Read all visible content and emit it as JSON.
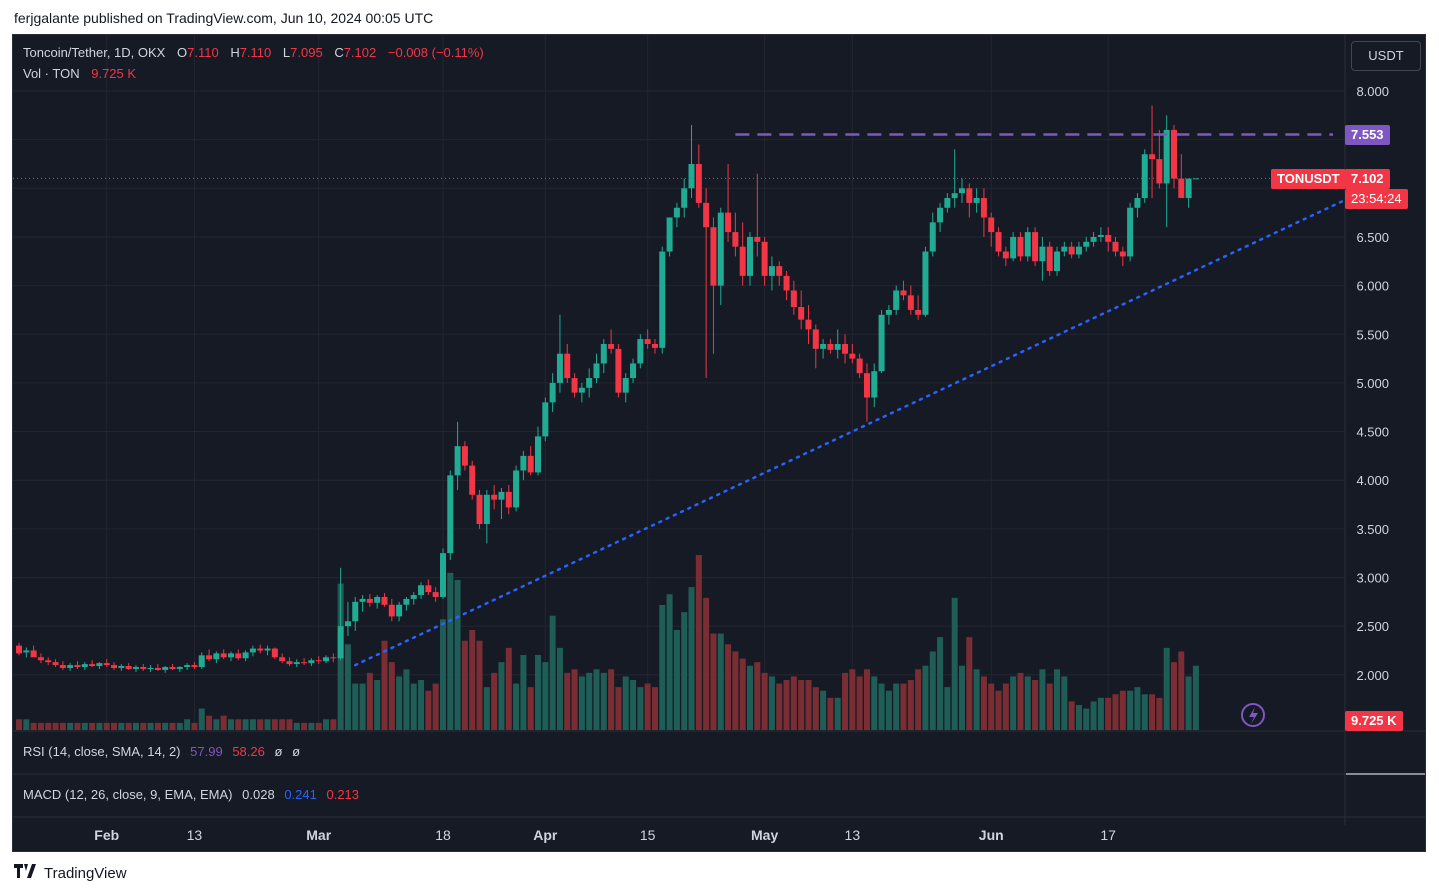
{
  "publisher_line": "ferjgalante published on TradingView.com, Jun 10, 2024 00:05 UTC",
  "legend": {
    "symbol": "Toncoin/Tether, 1D, OKX",
    "o_label": "O",
    "o": "7.110",
    "h_label": "H",
    "h": "7.110",
    "l_label": "L",
    "l": "7.095",
    "c_label": "C",
    "c": "7.102",
    "change": "−0.008 (−0.11%)",
    "vol_label": "Vol · TON",
    "vol": "9.725 K"
  },
  "currency_button": "USDT",
  "price_tags": {
    "resistance": "7.553",
    "symbol_label": "TONUSDT",
    "last_price": "7.102",
    "countdown": "23:54:24",
    "volume": "9.725 K"
  },
  "rsi": {
    "label": "RSI (14, close, SMA, 14, 2)",
    "v1": "57.99",
    "v2": "58.26",
    "v3": "ø",
    "v4": "ø"
  },
  "macd": {
    "label": "MACD (12, 26, close, 9, EMA, EMA)",
    "v1": "0.028",
    "v2": "0.241",
    "v3": "0.213"
  },
  "footer_brand": "TradingView",
  "colors": {
    "up": "#22ab94",
    "down": "#f23645",
    "background": "#161a25",
    "trendline": "#2962ff",
    "resistance": "#7e57c2"
  },
  "chart_data": {
    "type": "candlestick",
    "title": "Toncoin/Tether, 1D, OKX",
    "y_ticks": [
      "8.000",
      "7.500",
      "7.000",
      "6.500",
      "6.000",
      "5.500",
      "5.000",
      "4.500",
      "4.000",
      "3.500",
      "3.000",
      "2.500",
      "2.000"
    ],
    "ylim": [
      1.45,
      8.45
    ],
    "x_ticks": [
      "Feb",
      "13",
      "Mar",
      "18",
      "Apr",
      "15",
      "May",
      "13",
      "Jun",
      "17"
    ],
    "start_date": "2024-01-20",
    "end_date": "2024-06-10",
    "ohlc": [
      [
        2.3,
        2.33,
        2.2,
        2.22
      ],
      [
        2.23,
        2.28,
        2.18,
        2.25
      ],
      [
        2.25,
        2.3,
        2.2,
        2.18
      ],
      [
        2.18,
        2.22,
        2.12,
        2.15
      ],
      [
        2.15,
        2.18,
        2.1,
        2.13
      ],
      [
        2.13,
        2.16,
        2.08,
        2.1
      ],
      [
        2.1,
        2.14,
        2.05,
        2.07
      ],
      [
        2.07,
        2.12,
        2.04,
        2.1
      ],
      [
        2.1,
        2.14,
        2.06,
        2.08
      ],
      [
        2.08,
        2.13,
        2.05,
        2.11
      ],
      [
        2.11,
        2.15,
        2.08,
        2.09
      ],
      [
        2.09,
        2.13,
        2.06,
        2.12
      ],
      [
        2.12,
        2.16,
        2.08,
        2.1
      ],
      [
        2.1,
        2.13,
        2.05,
        2.07
      ],
      [
        2.07,
        2.11,
        2.04,
        2.09
      ],
      [
        2.09,
        2.12,
        2.05,
        2.06
      ],
      [
        2.06,
        2.1,
        2.03,
        2.08
      ],
      [
        2.08,
        2.11,
        2.04,
        2.06
      ],
      [
        2.06,
        2.1,
        2.03,
        2.07
      ],
      [
        2.07,
        2.11,
        2.04,
        2.05
      ],
      [
        2.05,
        2.09,
        2.02,
        2.08
      ],
      [
        2.08,
        2.11,
        2.05,
        2.06
      ],
      [
        2.06,
        2.09,
        2.03,
        2.08
      ],
      [
        2.08,
        2.12,
        2.05,
        2.1
      ],
      [
        2.1,
        2.13,
        2.06,
        2.08
      ],
      [
        2.08,
        2.23,
        2.06,
        2.2
      ],
      [
        2.2,
        2.26,
        2.14,
        2.16
      ],
      [
        2.16,
        2.24,
        2.12,
        2.22
      ],
      [
        2.22,
        2.26,
        2.16,
        2.18
      ],
      [
        2.18,
        2.24,
        2.14,
        2.22
      ],
      [
        2.22,
        2.26,
        2.15,
        2.17
      ],
      [
        2.17,
        2.25,
        2.14,
        2.23
      ],
      [
        2.23,
        2.3,
        2.19,
        2.27
      ],
      [
        2.27,
        2.31,
        2.22,
        2.25
      ],
      [
        2.25,
        2.3,
        2.2,
        2.27
      ],
      [
        2.27,
        2.28,
        2.16,
        2.18
      ],
      [
        2.18,
        2.22,
        2.12,
        2.14
      ],
      [
        2.14,
        2.18,
        2.09,
        2.11
      ],
      [
        2.11,
        2.16,
        2.08,
        2.13
      ],
      [
        2.13,
        2.17,
        2.1,
        2.12
      ],
      [
        2.12,
        2.17,
        2.09,
        2.15
      ],
      [
        2.15,
        2.19,
        2.11,
        2.14
      ],
      [
        2.14,
        2.2,
        2.12,
        2.18
      ],
      [
        2.18,
        2.22,
        2.13,
        2.17
      ],
      [
        2.17,
        3.1,
        2.15,
        2.5
      ],
      [
        2.5,
        2.75,
        2.4,
        2.55
      ],
      [
        2.55,
        2.8,
        2.45,
        2.75
      ],
      [
        2.75,
        2.82,
        2.65,
        2.78
      ],
      [
        2.78,
        2.83,
        2.7,
        2.74
      ],
      [
        2.74,
        2.82,
        2.68,
        2.8
      ],
      [
        2.8,
        2.84,
        2.7,
        2.72
      ],
      [
        2.72,
        2.78,
        2.55,
        2.6
      ],
      [
        2.6,
        2.75,
        2.55,
        2.72
      ],
      [
        2.72,
        2.8,
        2.66,
        2.78
      ],
      [
        2.78,
        2.85,
        2.72,
        2.82
      ],
      [
        2.82,
        2.95,
        2.78,
        2.92
      ],
      [
        2.92,
        2.98,
        2.82,
        2.85
      ],
      [
        2.85,
        2.9,
        2.75,
        2.8
      ],
      [
        2.8,
        3.3,
        2.78,
        3.25
      ],
      [
        3.25,
        4.1,
        3.18,
        4.05
      ],
      [
        4.05,
        4.6,
        3.9,
        4.35
      ],
      [
        4.35,
        4.4,
        4.1,
        4.15
      ],
      [
        4.15,
        4.2,
        3.8,
        3.85
      ],
      [
        3.85,
        3.9,
        3.5,
        3.55
      ],
      [
        3.55,
        3.9,
        3.35,
        3.85
      ],
      [
        3.85,
        3.95,
        3.7,
        3.8
      ],
      [
        3.8,
        3.92,
        3.6,
        3.88
      ],
      [
        3.88,
        3.95,
        3.65,
        3.72
      ],
      [
        3.72,
        4.15,
        3.68,
        4.1
      ],
      [
        4.1,
        4.3,
        4.0,
        4.25
      ],
      [
        4.25,
        4.35,
        4.05,
        4.08
      ],
      [
        4.08,
        4.55,
        4.05,
        4.45
      ],
      [
        4.45,
        4.85,
        4.4,
        4.8
      ],
      [
        4.8,
        5.1,
        4.7,
        5.0
      ],
      [
        5.0,
        5.7,
        4.9,
        5.3
      ],
      [
        5.3,
        5.4,
        5.0,
        5.05
      ],
      [
        5.05,
        5.1,
        4.85,
        4.9
      ],
      [
        4.9,
        5.0,
        4.8,
        4.95
      ],
      [
        4.95,
        5.15,
        4.85,
        5.05
      ],
      [
        5.05,
        5.3,
        5.0,
        5.2
      ],
      [
        5.2,
        5.45,
        5.1,
        5.4
      ],
      [
        5.4,
        5.55,
        5.3,
        5.35
      ],
      [
        5.35,
        5.4,
        4.85,
        4.9
      ],
      [
        4.9,
        5.1,
        4.8,
        5.05
      ],
      [
        5.05,
        5.25,
        5.0,
        5.2
      ],
      [
        5.2,
        5.5,
        5.15,
        5.45
      ],
      [
        5.45,
        5.55,
        5.35,
        5.4
      ],
      [
        5.4,
        5.45,
        5.3,
        5.36
      ],
      [
        5.36,
        6.4,
        5.3,
        6.35
      ],
      [
        6.35,
        6.7,
        6.3,
        6.7
      ],
      [
        6.7,
        6.85,
        6.6,
        6.8
      ],
      [
        6.8,
        7.1,
        6.7,
        7.0
      ],
      [
        7.0,
        7.65,
        6.9,
        7.25
      ],
      [
        7.25,
        7.45,
        6.8,
        6.85
      ],
      [
        6.85,
        7.0,
        5.05,
        6.6
      ],
      [
        6.6,
        6.7,
        5.3,
        6.0
      ],
      [
        6.0,
        6.8,
        5.8,
        6.75
      ],
      [
        6.75,
        7.25,
        6.45,
        6.55
      ],
      [
        6.55,
        6.75,
        6.3,
        6.4
      ],
      [
        6.4,
        6.65,
        6.0,
        6.1
      ],
      [
        6.1,
        6.55,
        6.0,
        6.5
      ],
      [
        6.5,
        7.15,
        6.3,
        6.45
      ],
      [
        6.45,
        6.5,
        6.0,
        6.1
      ],
      [
        6.1,
        6.3,
        5.95,
        6.2
      ],
      [
        6.2,
        6.25,
        6.0,
        6.1
      ],
      [
        6.1,
        6.15,
        5.85,
        5.95
      ],
      [
        5.95,
        6.05,
        5.7,
        5.78
      ],
      [
        5.78,
        5.95,
        5.55,
        5.65
      ],
      [
        5.65,
        5.8,
        5.4,
        5.55
      ],
      [
        5.55,
        5.6,
        5.15,
        5.35
      ],
      [
        5.35,
        5.45,
        5.25,
        5.4
      ],
      [
        5.4,
        5.45,
        5.3,
        5.34
      ],
      [
        5.34,
        5.55,
        5.25,
        5.4
      ],
      [
        5.4,
        5.5,
        5.2,
        5.3
      ],
      [
        5.3,
        5.4,
        5.2,
        5.25
      ],
      [
        5.25,
        5.3,
        5.05,
        5.1
      ],
      [
        5.1,
        5.2,
        4.6,
        4.85
      ],
      [
        4.85,
        5.2,
        4.75,
        5.12
      ],
      [
        5.12,
        5.75,
        5.1,
        5.7
      ],
      [
        5.7,
        5.8,
        5.6,
        5.75
      ],
      [
        5.75,
        6.0,
        5.7,
        5.95
      ],
      [
        5.95,
        6.05,
        5.85,
        5.9
      ],
      [
        5.9,
        6.0,
        5.7,
        5.75
      ],
      [
        5.75,
        5.9,
        5.65,
        5.7
      ],
      [
        5.7,
        6.4,
        5.68,
        6.35
      ],
      [
        6.35,
        6.75,
        6.3,
        6.65
      ],
      [
        6.65,
        6.85,
        6.55,
        6.8
      ],
      [
        6.8,
        6.95,
        6.75,
        6.9
      ],
      [
        6.9,
        7.4,
        6.8,
        6.95
      ],
      [
        6.95,
        7.1,
        6.85,
        7.0
      ],
      [
        7.0,
        7.05,
        6.7,
        6.85
      ],
      [
        6.85,
        7.0,
        6.75,
        6.9
      ],
      [
        6.9,
        7.0,
        6.5,
        6.7
      ],
      [
        6.7,
        6.75,
        6.4,
        6.55
      ],
      [
        6.55,
        6.6,
        6.3,
        6.35
      ],
      [
        6.35,
        6.4,
        6.2,
        6.28
      ],
      [
        6.28,
        6.55,
        6.25,
        6.5
      ],
      [
        6.5,
        6.55,
        6.25,
        6.3
      ],
      [
        6.3,
        6.6,
        6.25,
        6.55
      ],
      [
        6.55,
        6.6,
        6.2,
        6.25
      ],
      [
        6.25,
        6.5,
        6.05,
        6.4
      ],
      [
        6.4,
        6.45,
        6.1,
        6.15
      ],
      [
        6.15,
        6.4,
        6.1,
        6.35
      ],
      [
        6.35,
        6.45,
        6.3,
        6.4
      ],
      [
        6.4,
        6.45,
        6.28,
        6.32
      ],
      [
        6.32,
        6.45,
        6.28,
        6.4
      ],
      [
        6.4,
        6.5,
        6.35,
        6.45
      ],
      [
        6.45,
        6.55,
        6.4,
        6.5
      ],
      [
        6.5,
        6.6,
        6.45,
        6.52
      ],
      [
        6.52,
        6.6,
        6.35,
        6.45
      ],
      [
        6.45,
        6.5,
        6.3,
        6.35
      ],
      [
        6.35,
        6.4,
        6.2,
        6.3
      ],
      [
        6.3,
        6.85,
        6.25,
        6.8
      ],
      [
        6.8,
        6.95,
        6.7,
        6.9
      ],
      [
        6.9,
        7.4,
        6.85,
        7.35
      ],
      [
        7.35,
        7.85,
        6.9,
        7.3
      ],
      [
        7.3,
        7.6,
        7.0,
        7.05
      ],
      [
        7.05,
        7.75,
        6.6,
        7.6
      ],
      [
        7.6,
        7.65,
        7.0,
        7.1
      ],
      [
        7.1,
        7.35,
        6.95,
        6.9
      ],
      [
        6.9,
        7.1,
        6.8,
        7.1
      ],
      [
        7.1,
        7.1,
        7.095,
        7.102
      ]
    ],
    "volume": [
      3,
      3,
      2,
      2,
      2,
      2,
      2,
      2,
      2,
      2,
      2,
      2,
      2,
      2,
      2,
      2,
      2,
      2,
      2,
      2,
      2,
      2,
      2,
      3,
      2,
      6,
      4,
      3,
      4,
      3,
      3,
      3,
      3,
      3,
      3,
      3,
      3,
      3,
      2,
      2,
      2,
      2,
      3,
      3,
      41,
      24,
      13,
      13,
      16,
      14,
      25,
      19,
      15,
      17,
      13,
      14,
      11,
      13,
      31,
      44,
      42,
      25,
      28,
      25,
      12,
      16,
      19,
      23,
      13,
      21,
      12,
      21,
      19,
      32,
      23,
      16,
      17,
      15,
      16,
      17,
      16,
      17,
      12,
      15,
      14,
      12,
      13,
      12,
      35,
      38,
      28,
      33,
      40,
      49,
      37,
      27,
      27,
      24,
      22,
      20,
      18,
      19,
      16,
      15,
      13,
      14,
      15,
      14,
      14,
      12,
      11,
      9,
      9,
      16,
      17,
      15,
      17,
      15,
      13,
      11,
      13,
      13,
      14,
      17,
      18,
      22,
      26,
      12,
      37,
      18,
      26,
      17,
      15,
      13,
      11,
      13,
      15,
      16,
      15,
      14,
      17,
      13,
      17,
      15,
      8,
      7,
      6,
      8,
      9,
      9,
      10,
      11,
      11,
      12,
      10,
      10,
      9,
      23,
      19,
      22,
      15,
      18,
      13,
      7,
      7,
      6,
      5,
      4
    ]
  }
}
